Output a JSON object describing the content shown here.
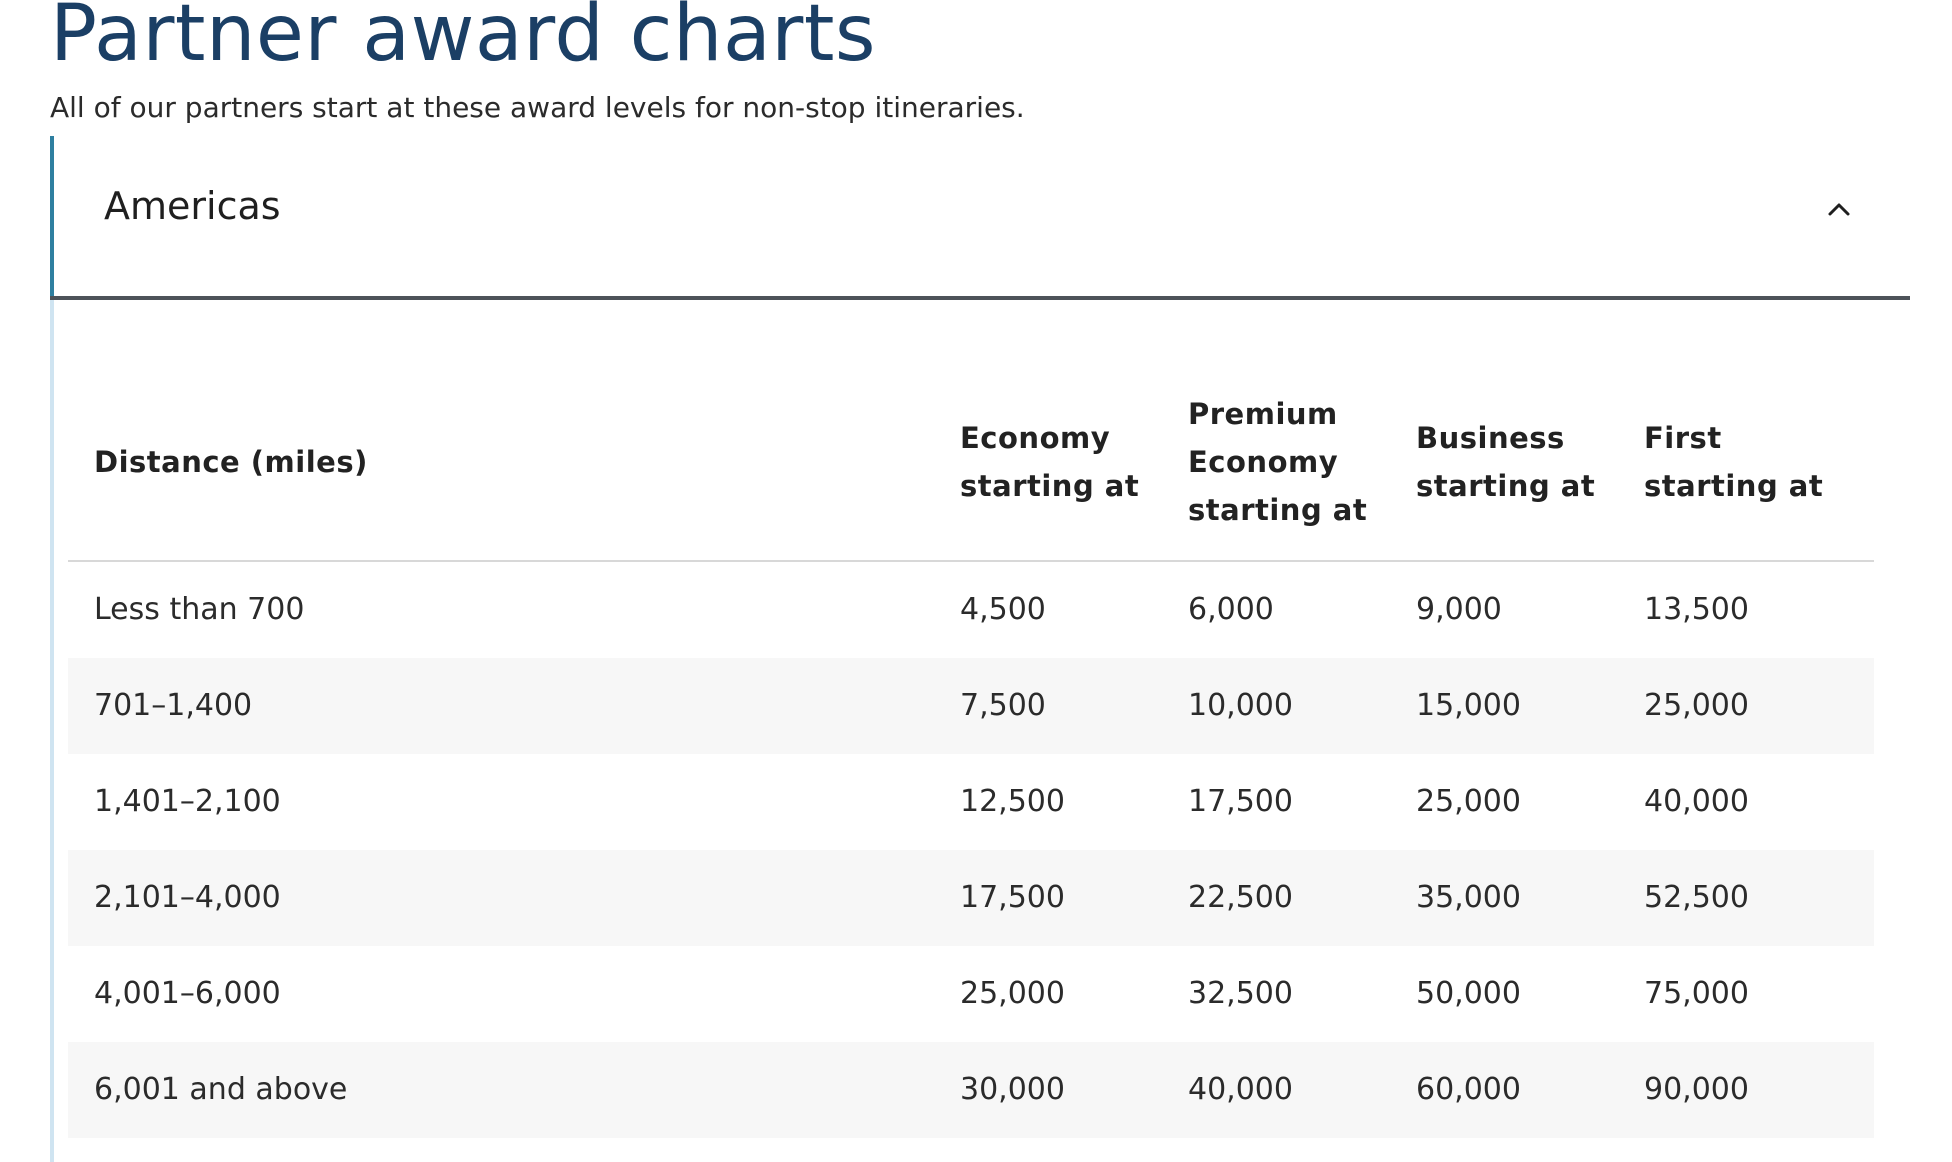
{
  "header": {
    "title": "Partner award charts",
    "subtitle": "All of our partners start at these award levels for non-stop itineraries."
  },
  "accordion": {
    "title": "Americas",
    "expanded": true,
    "toggle_icon": "chevron-up-icon",
    "accent_color": "#2e7fa0"
  },
  "table": {
    "columns": [
      "Distance (miles)",
      "Economy starting at",
      "Premium Economy starting at",
      "Business starting at",
      "First starting at"
    ],
    "rows": [
      [
        "Less than 700",
        "4,500",
        "6,000",
        "9,000",
        "13,500"
      ],
      [
        "701–1,400",
        "7,500",
        "10,000",
        "15,000",
        "25,000"
      ],
      [
        "1,401–2,100",
        "12,500",
        "17,500",
        "25,000",
        "40,000"
      ],
      [
        "2,101–4,000",
        "17,500",
        "22,500",
        "35,000",
        "52,500"
      ],
      [
        "4,001–6,000",
        "25,000",
        "32,500",
        "50,000",
        "75,000"
      ],
      [
        "6,001 and above",
        "30,000",
        "40,000",
        "60,000",
        "90,000"
      ]
    ]
  },
  "colors": {
    "title": "#1b3f65",
    "alt_row": "#f7f7f7",
    "divider": "#4d5359"
  }
}
